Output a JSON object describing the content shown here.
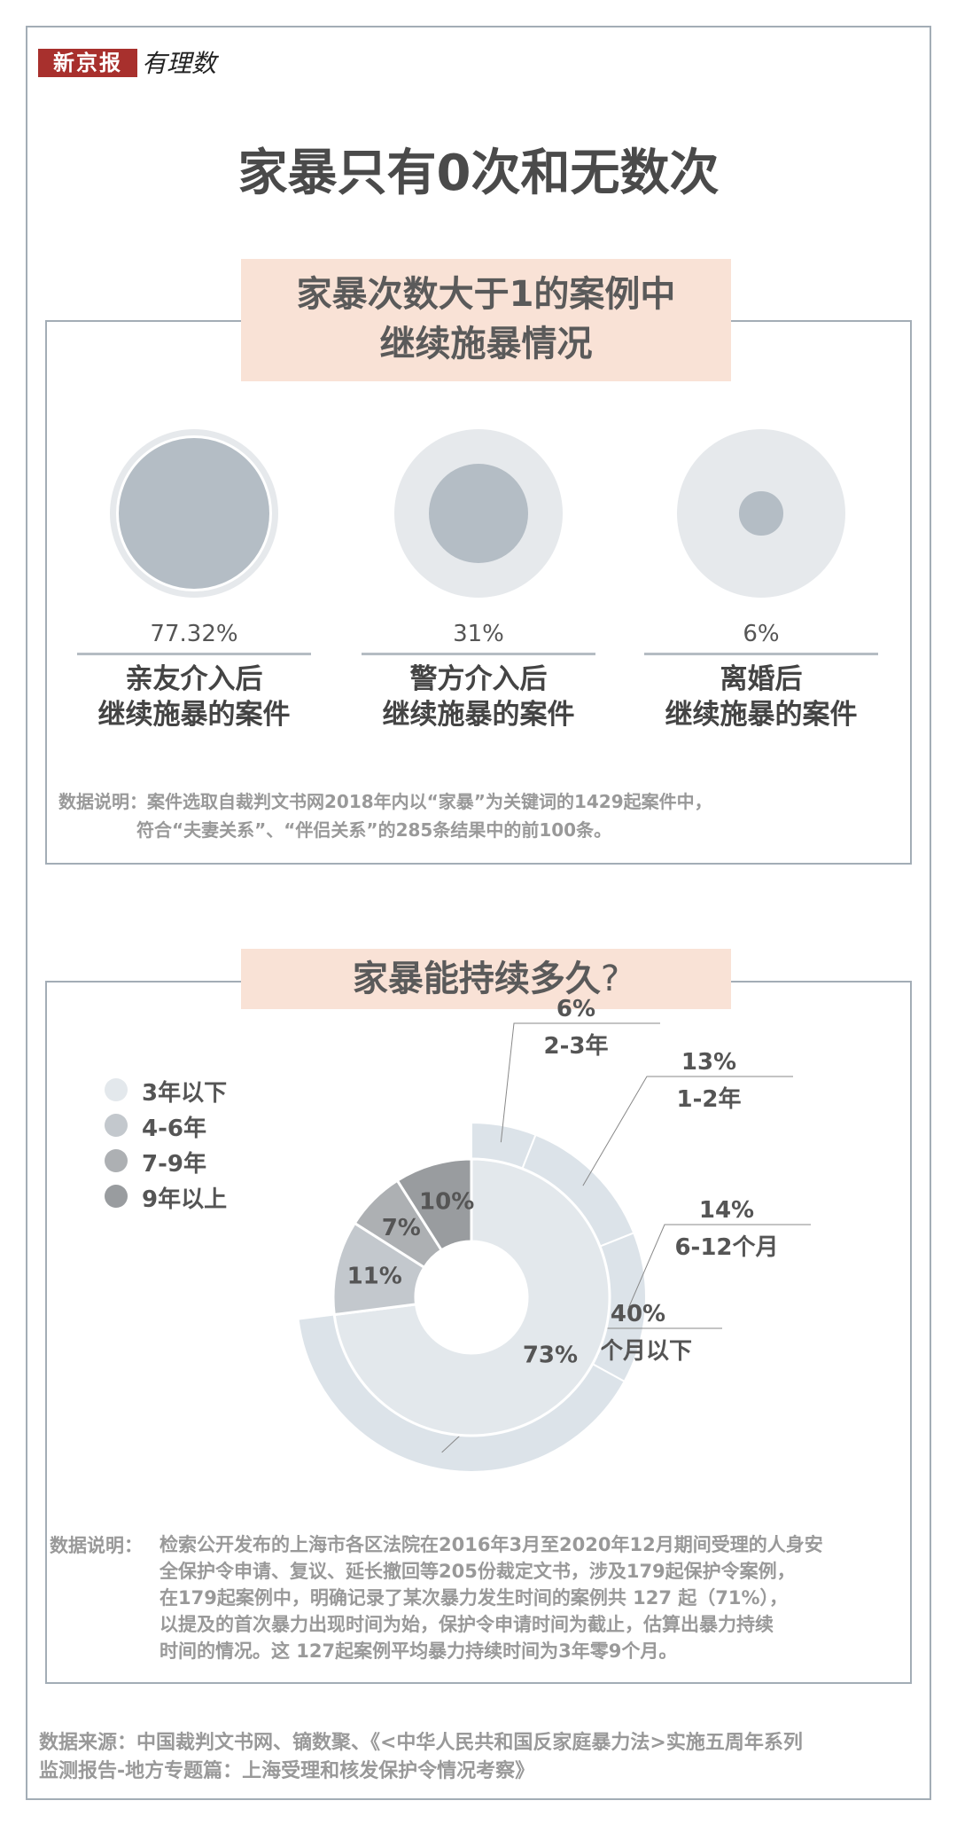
{
  "logo": {
    "brand": "新京报",
    "sub": "有理数"
  },
  "title": "家暴只有0次和无数次",
  "section1": {
    "header_line1": "家暴次数大于1的案例中",
    "header_line2": "继续施暴情况",
    "items": [
      {
        "pct": "77.32%",
        "value": 77.32,
        "line1": "亲友介入后",
        "line2": "继续施暴的案件"
      },
      {
        "pct": "31%",
        "value": 31,
        "line1": "警方介入后",
        "line2": "继续施暴的案件"
      },
      {
        "pct": "6%",
        "value": 6,
        "line1": "离婚后",
        "line2": "继续施暴的案件"
      }
    ],
    "note_line1": "数据说明：案件选取自裁判文书网2018年内以“家暴”为关键词的1429起案件中，",
    "note_line2": "符合“夫妻关系”、“伴侣关系”的285条结果中的前100条。"
  },
  "section2": {
    "header": "家暴能持续多久",
    "header_q": "?",
    "note_label": "数据说明：",
    "note_lines": [
      "检索公开发布的上海市各区法院在2016年3月至2020年12月期间受理的人身安",
      "全保护令申请、复议、延长撤回等205份裁定文书，涉及179起保护令案例，",
      "在179起案例中，明确记录了某次暴力发生时间的案例共 127 起（71%），",
      "以提及的首次暴力出现时间为始，保护令申请时间为截止，估算出暴力持续",
      "时间的情况。这 127起案例平均暴力持续时间为3年零9个月。"
    ]
  },
  "source": {
    "line1": "数据来源：中国裁判文书网、镝数聚、《<中华人民共和国反家庭暴力法>实施五周年系列",
    "line2": "监测报告-地方专题篇：上海受理和核发保护令情况考察》"
  },
  "chart_data": {
    "type": "pie",
    "title": "家暴能持续多久?",
    "legend": {
      "position": "left",
      "entries": [
        "3年以下",
        "4-6年",
        "7-9年",
        "9年以上"
      ]
    },
    "inner_ring": [
      {
        "name": "3年以下",
        "value": 73,
        "label": "73%",
        "color": "#e3e8ec"
      },
      {
        "name": "4-6年",
        "value": 11,
        "label": "11%",
        "color": "#c3c8cd"
      },
      {
        "name": "7-9年",
        "value": 7,
        "label": "7%",
        "color": "#adb0b3"
      },
      {
        "name": "9年以上",
        "value": 10,
        "label": "10%",
        "color": "#999c9f"
      }
    ],
    "outer_ring": [
      {
        "name": "2-3年",
        "value": 6,
        "label": "6%",
        "color": "#dce3e9"
      },
      {
        "name": "1-2年",
        "value": 13,
        "label": "13%",
        "color": "#dce3e9"
      },
      {
        "name": "6-12个月",
        "value": 14,
        "label": "14%",
        "color": "#dce3e9"
      },
      {
        "name": "6个月以下",
        "value": 40,
        "label": "40%",
        "color": "#dce3e9"
      }
    ]
  }
}
